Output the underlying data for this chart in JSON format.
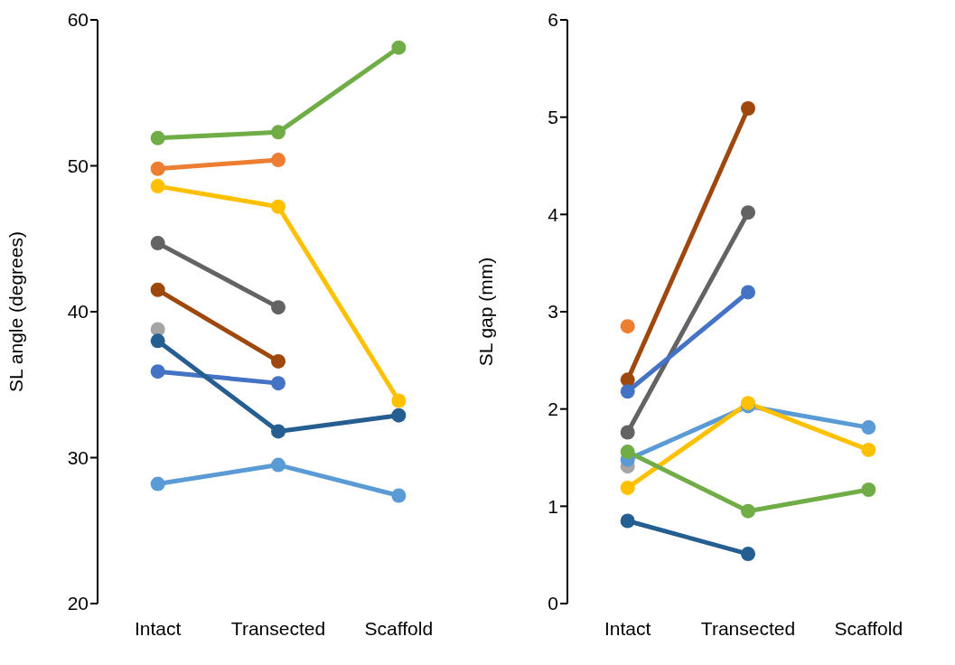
{
  "chart_data": [
    {
      "type": "line",
      "ylabel": "SL angle (degrees)",
      "categories": [
        "Intact",
        "Transected",
        "Scaffold"
      ],
      "ylim": [
        20,
        60
      ],
      "yticks": [
        20,
        30,
        40,
        50,
        60
      ],
      "grid": false,
      "legend": false,
      "marker": "circle",
      "line_style": "solid",
      "series": [
        {
          "color": "#70ad47",
          "values": [
            51.9,
            52.3,
            58.1
          ]
        },
        {
          "color": "#ed7d31",
          "values": [
            49.8,
            50.4,
            null
          ]
        },
        {
          "color": "#ffc000",
          "values": [
            48.6,
            47.2,
            33.9
          ]
        },
        {
          "color": "#636363",
          "values": [
            44.7,
            40.3,
            null
          ]
        },
        {
          "color": "#9e480e",
          "values": [
            41.5,
            36.6,
            null
          ]
        },
        {
          "color": "#a5a5a5",
          "values": [
            38.8,
            null,
            null
          ]
        },
        {
          "color": "#4472c4",
          "values": [
            35.9,
            35.1,
            null
          ]
        },
        {
          "color": "#255e91",
          "values": [
            38.0,
            31.8,
            32.9
          ]
        },
        {
          "color": "#5b9bd5",
          "values": [
            28.2,
            29.5,
            27.4
          ]
        }
      ]
    },
    {
      "type": "line",
      "ylabel": "SL gap (mm)",
      "categories": [
        "Intact",
        "Transected",
        "Scaffold"
      ],
      "ylim": [
        0,
        6
      ],
      "yticks": [
        0,
        1,
        2,
        3,
        4,
        5,
        6
      ],
      "grid": false,
      "legend": false,
      "marker": "circle",
      "line_style": "solid",
      "series": [
        {
          "color": "#ed7d31",
          "values": [
            2.85,
            null,
            null
          ]
        },
        {
          "color": "#a5a5a5",
          "values": [
            1.41,
            null,
            null
          ]
        },
        {
          "color": "#5b9bd5",
          "values": [
            1.48,
            2.03,
            1.81
          ]
        },
        {
          "color": "#9e480e",
          "values": [
            2.3,
            5.09,
            null
          ]
        },
        {
          "color": "#636363",
          "values": [
            1.76,
            4.02,
            null
          ]
        },
        {
          "color": "#4472c4",
          "values": [
            2.18,
            3.2,
            null
          ]
        },
        {
          "color": "#ffc000",
          "values": [
            1.19,
            2.06,
            1.58
          ]
        },
        {
          "color": "#70ad47",
          "values": [
            1.56,
            0.95,
            1.17
          ]
        },
        {
          "color": "#255e91",
          "values": [
            0.85,
            0.51,
            null
          ]
        }
      ]
    }
  ]
}
